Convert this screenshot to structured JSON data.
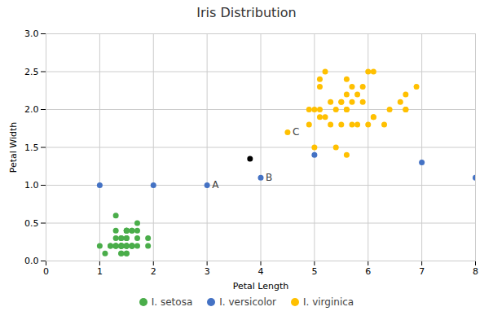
{
  "chart_data": {
    "type": "scatter",
    "title": "Iris Distribution",
    "xlabel": "Petal Length",
    "ylabel": "Petal Width",
    "xlim": [
      0,
      8
    ],
    "ylim": [
      0,
      3
    ],
    "xticks": [
      0,
      1,
      2,
      3,
      4,
      5,
      6,
      7,
      8
    ],
    "yticks": [
      {
        "value": 0,
        "label": "0.0"
      },
      0.5,
      {
        "value": 1.0,
        "label": "1.0"
      },
      1.5,
      {
        "value": 2.0,
        "label": "2.0"
      },
      2.5,
      {
        "value": 3.0,
        "label": "3.0"
      }
    ],
    "grid": true,
    "legend": "bottom",
    "series": [
      {
        "name": "I. setosa",
        "color": "#4aad4a",
        "x": [
          1.4,
          1.4,
          1.3,
          1.5,
          1.4,
          1.7,
          1.4,
          1.5,
          1.4,
          1.5,
          1.5,
          1.6,
          1.4,
          1.1,
          1.2,
          1.5,
          1.3,
          1.4,
          1.7,
          1.5,
          1.7,
          1.5,
          1.0,
          1.7,
          1.9,
          1.6,
          1.6,
          1.5,
          1.4,
          1.6,
          1.6,
          1.5,
          1.5,
          1.4,
          1.5,
          1.2,
          1.3,
          1.4,
          1.3,
          1.5,
          1.3,
          1.3,
          1.3,
          1.6,
          1.9,
          1.4,
          1.6,
          1.4,
          1.5,
          1.4
        ],
        "y": [
          0.2,
          0.2,
          0.2,
          0.2,
          0.2,
          0.4,
          0.3,
          0.2,
          0.2,
          0.1,
          0.2,
          0.2,
          0.1,
          0.1,
          0.2,
          0.4,
          0.4,
          0.3,
          0.3,
          0.3,
          0.2,
          0.4,
          0.2,
          0.5,
          0.2,
          0.2,
          0.4,
          0.2,
          0.2,
          0.2,
          0.2,
          0.4,
          0.1,
          0.2,
          0.2,
          0.2,
          0.2,
          0.1,
          0.2,
          0.3,
          0.3,
          0.2,
          0.6,
          0.4,
          0.3,
          0.2,
          0.2,
          0.2,
          0.4,
          0.2
        ]
      },
      {
        "name": "I. versicolor",
        "color": "#4472c4",
        "x": [
          1.0,
          2.0,
          3.0,
          4.0,
          5.0,
          7.0,
          8.0
        ],
        "y": [
          1.0,
          1.0,
          1.0,
          1.1,
          1.4,
          1.3,
          1.1
        ]
      },
      {
        "name": "I. virginica",
        "color": "#ffc000",
        "x": [
          4.5,
          4.9,
          4.9,
          5.0,
          5.0,
          5.1,
          5.1,
          5.1,
          5.1,
          5.2,
          5.2,
          5.3,
          5.3,
          5.4,
          5.4,
          5.5,
          5.5,
          5.5,
          5.6,
          5.6,
          5.6,
          5.6,
          5.6,
          5.7,
          5.7,
          5.7,
          5.8,
          5.8,
          5.9,
          5.9,
          6.0,
          6.0,
          6.1,
          6.1,
          6.1,
          6.3,
          6.4,
          6.6,
          6.7,
          6.7,
          6.7,
          6.9
        ],
        "y": [
          1.7,
          2.0,
          1.8,
          1.5,
          2.0,
          1.9,
          2.0,
          2.4,
          2.3,
          1.9,
          2.5,
          1.8,
          2.1,
          2.0,
          1.5,
          2.1,
          2.1,
          1.8,
          2.0,
          1.4,
          2.0,
          2.2,
          2.4,
          2.3,
          1.8,
          2.1,
          1.8,
          2.2,
          2.1,
          2.3,
          1.8,
          2.5,
          1.9,
          2.5,
          1.9,
          1.8,
          2.0,
          2.1,
          2.2,
          2.0,
          2.0,
          2.3
        ]
      },
      {
        "color": "#000000",
        "x": [
          3.8
        ],
        "y": [
          1.35
        ]
      }
    ],
    "annotations": [
      {
        "text": "A",
        "x": 3.0,
        "y": 1.0
      },
      {
        "text": "B",
        "x": 4.0,
        "y": 1.1
      },
      {
        "text": "C",
        "x": 4.5,
        "y": 1.7
      }
    ]
  }
}
